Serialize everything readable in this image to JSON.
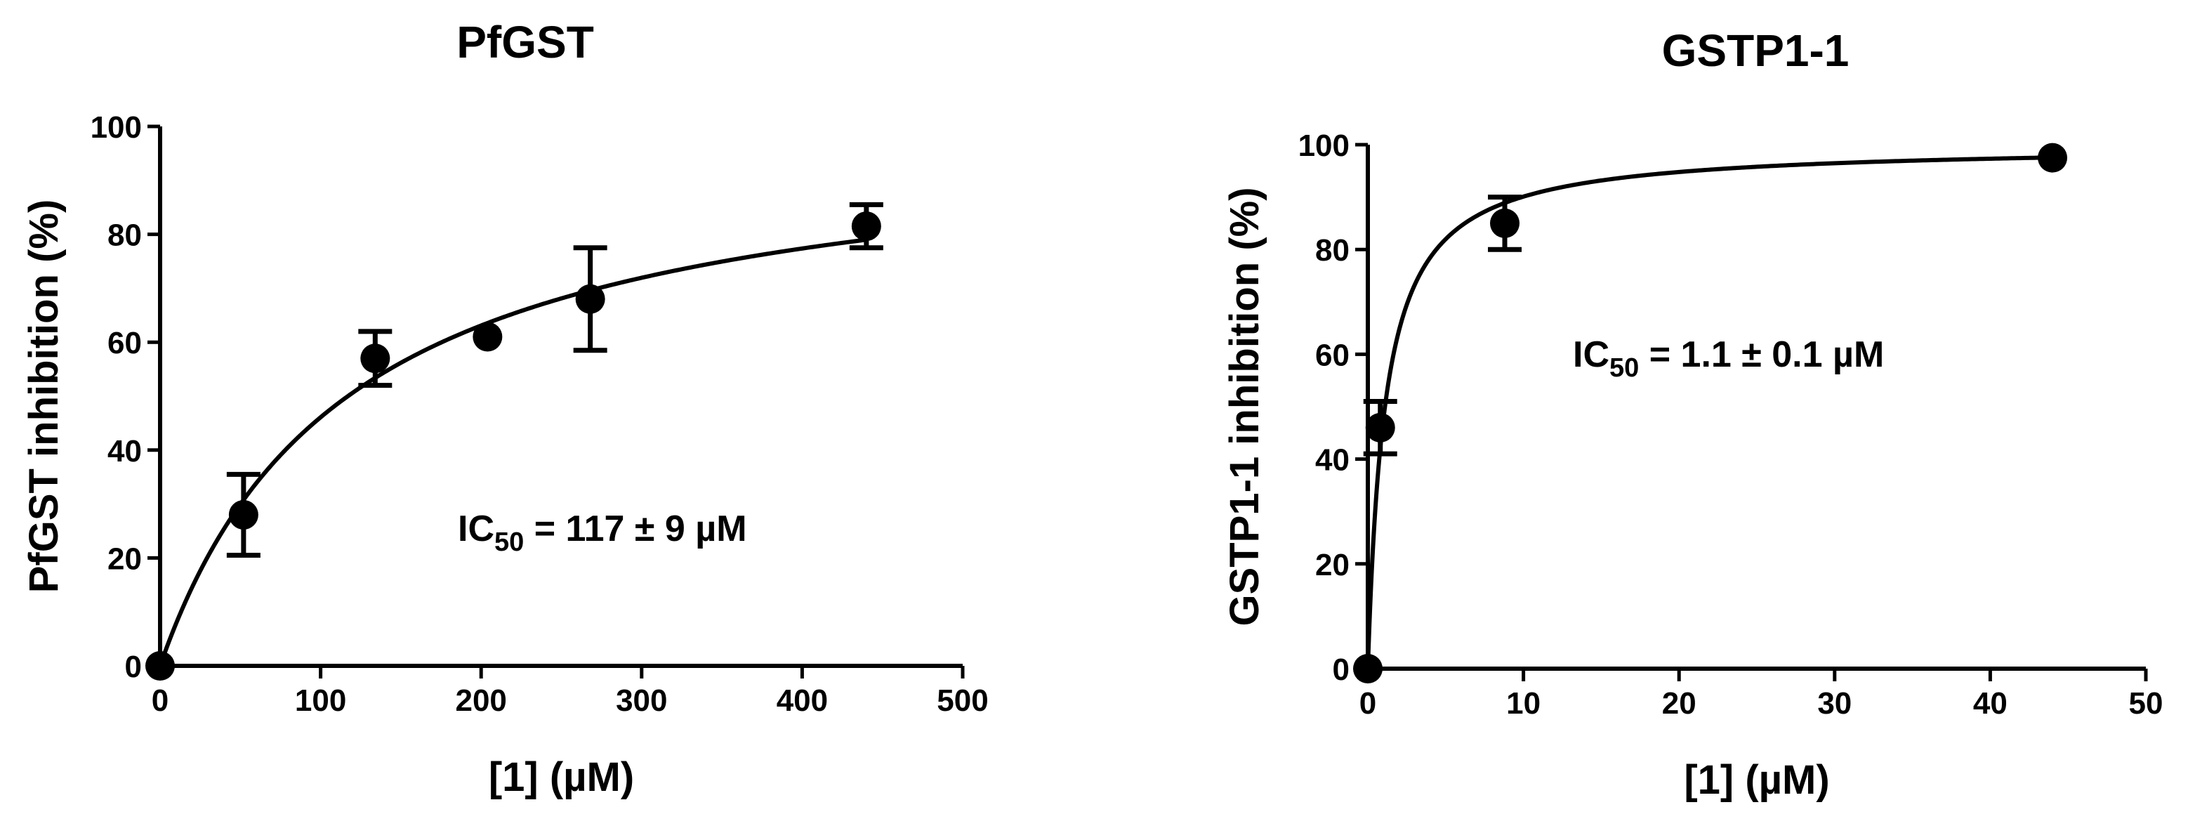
{
  "chart_data": [
    {
      "type": "scatter",
      "title": "PfGST",
      "xlabel": "[1] (µM)",
      "ylabel": "PfGST inhibition (%)",
      "xlim": [
        0,
        500
      ],
      "ylim": [
        0,
        100
      ],
      "xticks": [
        0,
        100,
        200,
        300,
        400,
        500
      ],
      "yticks": [
        0,
        20,
        40,
        60,
        80,
        100
      ],
      "grid": false,
      "points": [
        {
          "x": 0,
          "y": 0,
          "err": 0
        },
        {
          "x": 52,
          "y": 28,
          "err": 7.5
        },
        {
          "x": 134,
          "y": 57,
          "err": 5
        },
        {
          "x": 204,
          "y": 61,
          "err": 0
        },
        {
          "x": 268,
          "y": 68,
          "err": 9.5
        },
        {
          "x": 440,
          "y": 81.5,
          "err": 4
        }
      ],
      "fit": {
        "model": "hyperbolic",
        "ic50": 117
      },
      "annotation": {
        "text": "IC",
        "sub": "50",
        "tail": " = 117 ± 9 µM"
      }
    },
    {
      "type": "scatter",
      "title": "GSTP1-1",
      "xlabel": "[1] (µM)",
      "ylabel": "GSTP1-1 inhibition (%)",
      "xlim": [
        0,
        50
      ],
      "ylim": [
        0,
        100
      ],
      "xticks": [
        0,
        10,
        20,
        30,
        40,
        50
      ],
      "yticks": [
        0,
        20,
        40,
        60,
        80,
        100
      ],
      "grid": false,
      "points": [
        {
          "x": 0,
          "y": 0,
          "err": 0
        },
        {
          "x": 0.8,
          "y": 46,
          "err": 5
        },
        {
          "x": 8.8,
          "y": 85,
          "err": 5
        },
        {
          "x": 44,
          "y": 97.5,
          "err": 0
        }
      ],
      "fit": {
        "model": "hyperbolic",
        "ic50": 1.1
      },
      "annotation": {
        "text": "IC",
        "sub": "50",
        "tail": " = 1.1 ± 0.1 µM"
      }
    }
  ]
}
